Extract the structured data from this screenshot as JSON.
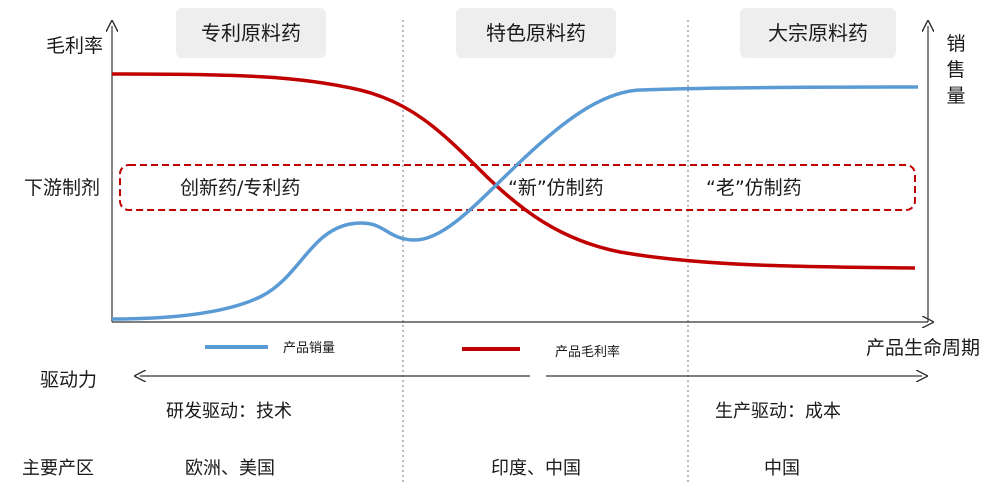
{
  "y_axis_left_label": "毛利率",
  "y_axis_right_label": [
    "销",
    "售",
    "量"
  ],
  "x_axis_label": "产品生命周期",
  "stages": [
    "专利原料药",
    "特色原料药",
    "大宗原料药"
  ],
  "downstream_label": "下游制剂",
  "downstream_zones": [
    "创新药/专利药",
    "“新”仿制药",
    "“老”仿制药"
  ],
  "legend": [
    {
      "label": "产品销量",
      "color": "#5b9bd5"
    },
    {
      "label": "产品毛利率",
      "color": "#c00000"
    }
  ],
  "driver_label": "驱动力",
  "drivers": [
    "研发驱动：技术",
    "生产驱动：成本"
  ],
  "region_label": "主要产区",
  "regions": [
    "欧洲、美国",
    "印度、中国",
    "中国"
  ],
  "colors": {
    "sales": "#5b9bd5",
    "margin": "#c00000",
    "stage_box": "#eeeeee",
    "divider": "#a6a6a6"
  }
}
